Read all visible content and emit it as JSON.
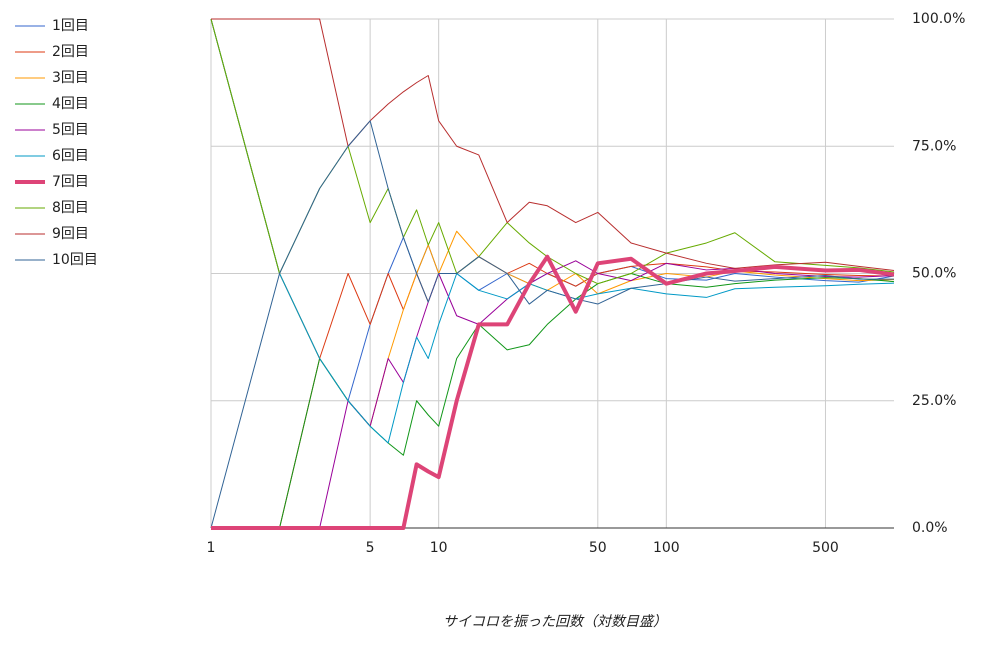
{
  "chart_data": {
    "type": "line",
    "x_label": "サイコロを振った回数（対数目盛）",
    "xscale": "log",
    "grid": true,
    "legend": "left",
    "x": [
      1,
      2,
      3,
      4,
      5,
      6,
      7,
      8,
      9,
      10,
      12,
      15,
      20,
      25,
      30,
      40,
      50,
      70,
      100,
      150,
      200,
      300,
      500,
      700,
      1000
    ],
    "xlim": [
      1,
      1000
    ],
    "xticks": [
      1,
      5,
      10,
      50,
      100,
      500
    ],
    "ylim": [
      0,
      100
    ],
    "yticks": [
      {
        "value": 0,
        "label": "0.0%"
      },
      {
        "value": 25,
        "label": "25.0%"
      },
      {
        "value": 50,
        "label": "50.0%"
      },
      {
        "value": 75,
        "label": "75.0%"
      },
      {
        "value": 100,
        "label": "100.0%"
      }
    ],
    "series": [
      {
        "name": "1回目",
        "color": "#3366cc",
        "width": 1,
        "values": [
          100,
          50,
          33.3,
          25,
          40,
          50,
          57.1,
          50,
          55.6,
          50,
          50,
          46.7,
          50,
          48,
          50,
          47.5,
          50,
          51.4,
          49,
          48.7,
          50,
          49.3,
          48.6,
          48.3,
          49.5
        ]
      },
      {
        "name": "2回目",
        "color": "#dc3912",
        "width": 1,
        "values": [
          0,
          0,
          33.3,
          50,
          40,
          50,
          42.9,
          50,
          44.4,
          50,
          50,
          53.3,
          50,
          52,
          50,
          47.5,
          50,
          51.4,
          52,
          51.3,
          50.5,
          50.3,
          49.8,
          49.6,
          49.5
        ]
      },
      {
        "name": "3回目",
        "color": "#ff9900",
        "width": 1,
        "values": [
          100,
          50,
          33.3,
          25,
          20,
          33.3,
          42.9,
          50,
          55.6,
          50,
          58.3,
          53.3,
          50,
          48,
          46.7,
          50,
          46,
          48.6,
          50,
          49.3,
          50.5,
          49.7,
          49,
          48.6,
          48.8
        ]
      },
      {
        "name": "4回目",
        "color": "#109618",
        "width": 1,
        "values": [
          0,
          0,
          33.3,
          25,
          20,
          16.7,
          14.3,
          25,
          22.2,
          20,
          33.3,
          40,
          35,
          36,
          40,
          45,
          48,
          50,
          48,
          47.3,
          48,
          48.7,
          49.2,
          49,
          48.4
        ]
      },
      {
        "name": "5回目",
        "color": "#990099",
        "width": 1,
        "values": [
          0,
          0,
          0,
          25,
          20,
          33.3,
          28.6,
          37.5,
          44.4,
          50,
          41.7,
          40,
          45,
          48,
          50,
          52.5,
          50,
          48.6,
          52,
          50.7,
          51,
          50,
          49.4,
          49.3,
          49.6
        ]
      },
      {
        "name": "6回目",
        "color": "#0099c6",
        "width": 1,
        "values": [
          100,
          50,
          33.3,
          25,
          20,
          16.7,
          28.6,
          37.5,
          33.3,
          40,
          50,
          46.7,
          45,
          48,
          46.7,
          45,
          46,
          47.1,
          46,
          45.3,
          47,
          47.3,
          47.6,
          47.9,
          48.1
        ]
      },
      {
        "name": "7回目",
        "color": "#dd4477",
        "width": 4,
        "values": [
          0,
          0,
          0,
          0,
          0,
          0,
          0,
          12.5,
          11.1,
          10,
          25,
          40,
          40,
          48,
          53.3,
          42.5,
          52,
          52.9,
          48,
          50,
          50.5,
          51.3,
          50.6,
          50.7,
          49.8
        ]
      },
      {
        "name": "8回目",
        "color": "#66aa00",
        "width": 1,
        "values": [
          100,
          50,
          66.7,
          75,
          60,
          66.7,
          57.1,
          62.5,
          55.6,
          60,
          50,
          53.3,
          60,
          56,
          53.3,
          50,
          48,
          50,
          54,
          56,
          58,
          52.3,
          51.6,
          51.1,
          50.3
        ]
      },
      {
        "name": "9回目",
        "color": "#b82e2e",
        "width": 1,
        "values": [
          100,
          100,
          100,
          75,
          80,
          83.3,
          85.7,
          87.5,
          88.9,
          80,
          75,
          73.3,
          60,
          64,
          63.3,
          60,
          62,
          56,
          54,
          52,
          51,
          51.7,
          52.2,
          51.4,
          50.6
        ]
      },
      {
        "name": "10回目",
        "color": "#316395",
        "width": 1,
        "values": [
          0,
          50,
          66.7,
          75,
          80,
          66.7,
          57.1,
          50,
          44.4,
          50,
          50,
          53.3,
          50,
          44,
          46.7,
          45,
          44,
          47.1,
          48,
          49.3,
          48.5,
          49,
          49.6,
          48.9,
          48.9
        ]
      }
    ]
  }
}
